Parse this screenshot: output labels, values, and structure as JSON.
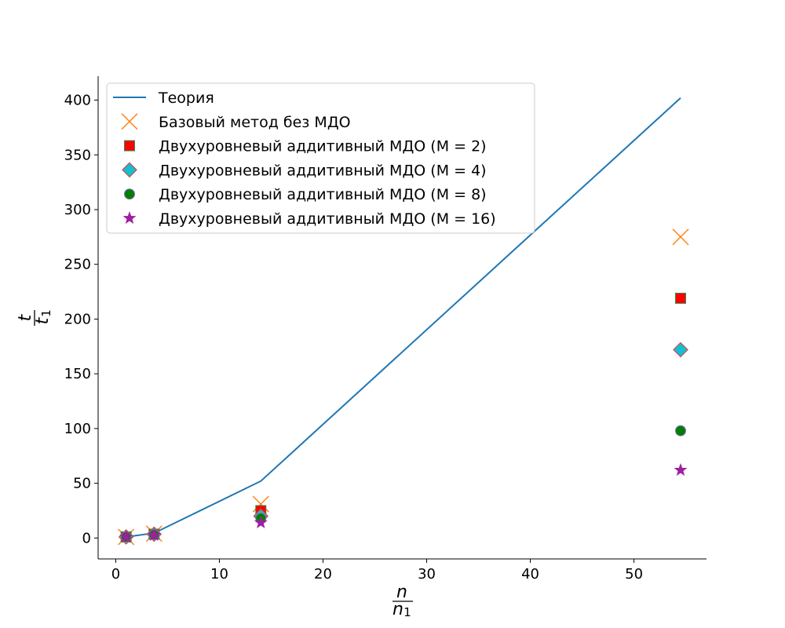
{
  "chart_data": {
    "type": "scatter",
    "xlim": [
      -1.7,
      57.0
    ],
    "ylim": [
      -19.1,
      421.9
    ],
    "xticks": [
      0,
      10,
      20,
      30,
      40,
      50
    ],
    "yticks": [
      0,
      50,
      100,
      150,
      200,
      250,
      300,
      350,
      400
    ],
    "xlabel": {
      "numerator": "n",
      "denominator": "n",
      "denominator_subscript": "1"
    },
    "ylabel": {
      "numerator": "t",
      "denominator": "t",
      "denominator_subscript": "1"
    },
    "grid": false,
    "legend_position": "upper-left",
    "series": [
      {
        "name": "Теория",
        "kind": "line",
        "color": "#1f77b4",
        "x": [
          1,
          3.7,
          14,
          54.5
        ],
        "y": [
          1,
          4.5,
          52,
          402
        ]
      },
      {
        "name": "Базовый метод без МДО",
        "kind": "marker",
        "marker": "x",
        "color": "#ff7f0e",
        "x": [
          1,
          3.7,
          14,
          54.5
        ],
        "y": [
          1,
          4,
          31,
          275
        ]
      },
      {
        "name": "Двухуровневый аддитивный МДО (M = 2)",
        "kind": "marker",
        "marker": "square",
        "color": "#ff0000",
        "edge": "#2e8b57",
        "x": [
          1,
          3.7,
          14,
          54.5
        ],
        "y": [
          1,
          3.5,
          25,
          219
        ]
      },
      {
        "name": "Двухуровневый аддитивный МДО (M = 4)",
        "kind": "marker",
        "marker": "diamond",
        "color": "#17becf",
        "edge": "#c44e52",
        "x": [
          1,
          3.7,
          14,
          54.5
        ],
        "y": [
          1,
          3.5,
          20,
          172
        ]
      },
      {
        "name": "Двухуровневый аддитивный МДО (M = 8)",
        "kind": "marker",
        "marker": "circle",
        "color": "#008000",
        "edge": "#9467bd",
        "x": [
          1,
          3.7,
          14,
          54.5
        ],
        "y": [
          1,
          3,
          18,
          98
        ]
      },
      {
        "name": "Двухуровневый аддитивный МДО (M = 16)",
        "kind": "marker",
        "marker": "star",
        "color": "#9e1fa0",
        "x": [
          1,
          3.7,
          14,
          54.5
        ],
        "y": [
          1,
          2.5,
          14,
          62
        ]
      }
    ]
  }
}
